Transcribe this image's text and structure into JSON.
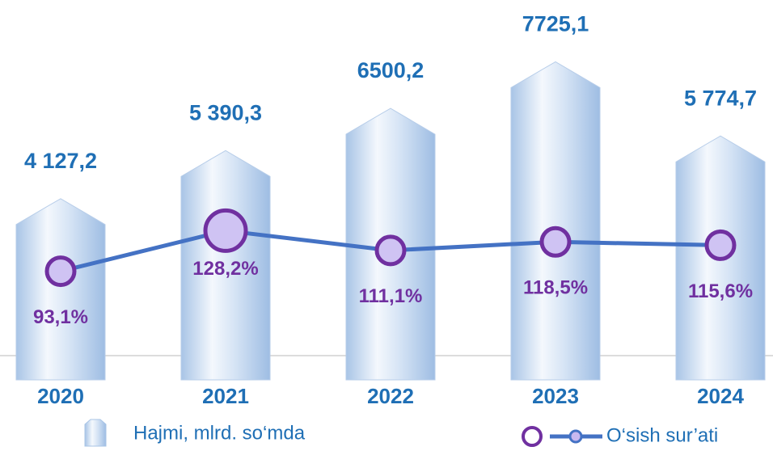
{
  "chart_data": {
    "type": "bar",
    "categories": [
      "2020",
      "2021",
      "2022",
      "2023",
      "2024"
    ],
    "series": [
      {
        "name": "Hajmi, mlrd. so‘mda",
        "type": "bar",
        "color": "#bcd3ee",
        "values": [
          4127.2,
          5390.3,
          6500.2,
          7725.1,
          5774.7
        ],
        "value_labels": [
          "4 127,2",
          "5 390,3",
          "6500,2",
          "7725,1",
          "5 774,7"
        ]
      },
      {
        "name": "O‘sish sur’ati",
        "type": "line",
        "axis": "y2",
        "color": "#4472c4",
        "values": [
          93.1,
          128.2,
          111.1,
          118.5,
          115.6
        ],
        "value_labels": [
          "93,1%",
          "128,2%",
          "111,1%",
          "118,5%",
          "115,6%"
        ]
      }
    ],
    "ylim": [
      0,
      8500
    ],
    "y2lim": [
      20,
      300
    ]
  }
}
